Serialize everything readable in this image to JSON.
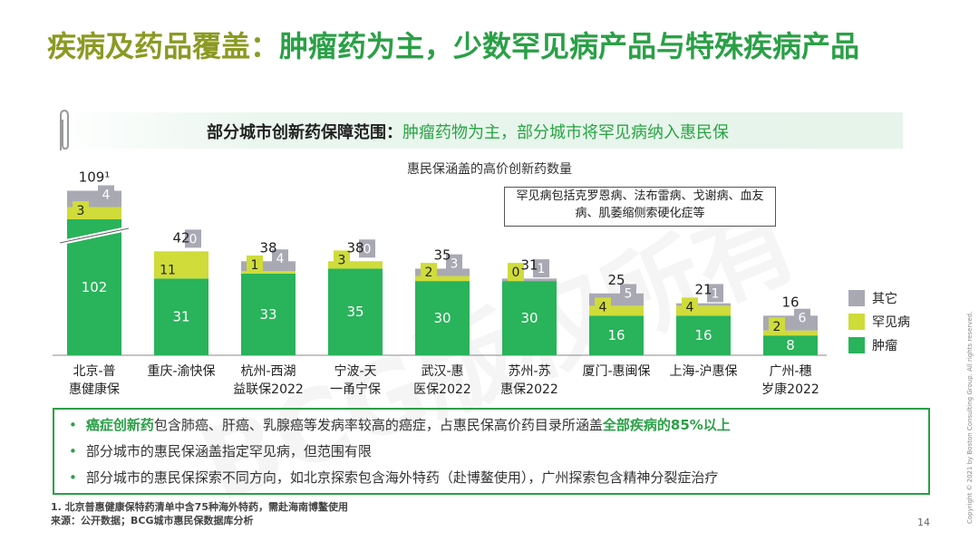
{
  "title_lead": "疾病及药品覆盖：",
  "title_rest": "肿瘤药为主，少数罕见病产品与特殊疾病产品",
  "subhead_bold": "部分城市创新药保障范围：",
  "subhead_rest": "肿瘤药物为主，部分城市将罕见病纳入惠民保",
  "callout": "罕见病包括克罗恩病、法布雷病、戈谢病、血友病、肌萎缩侧索硬化症等",
  "bullets": {
    "b1_hl1": "癌症创新药",
    "b1_mid": "包含肺癌、肝癌、乳腺癌等发病率较高的癌症，占惠民保高价药目录所涵盖",
    "b1_hl2": "全部疾病的85%以上",
    "b2": "部分城市的惠民保涵盖指定罕见病，但范围有限",
    "b3": "部分城市的惠民保探索不同方向，如北京探索包含海外特药（赴博鳌使用），广州探索包含精神分裂症治疗"
  },
  "footnote1": "1. 北京普惠健康保特药清单中含75种海外特药，需赴海南博鳌使用",
  "footnote2": "来源：公开数据；BCG城市惠民保数据库分析",
  "page_number": "14",
  "copyright": "Copyright © 2021 by Boston Consulting Group. All rights reserved.",
  "colors": {
    "tumor": "#29b35a",
    "rare": "#cfdc3a",
    "other": "#a9a9b4",
    "title_green": "#2aa046",
    "title_olive": "#8a9a22"
  },
  "chart_data": {
    "type": "bar",
    "stacked": true,
    "title": "惠民保涵盖的高价创新药数量",
    "categories": [
      "北京-普\n惠健康保",
      "重庆-渝快保",
      "杭州-西湖\n益联保2022",
      "宁波-天\n一甬宁保",
      "武汉-惠\n医保2022",
      "苏州-苏\n惠保2022",
      "厦门-惠闽保",
      "上海-沪惠保",
      "广州-穗\n岁康2022"
    ],
    "series": [
      {
        "name": "肿瘤",
        "values": [
          102,
          31,
          33,
          35,
          30,
          30,
          16,
          16,
          8
        ]
      },
      {
        "name": "罕见病",
        "values": [
          3,
          11,
          1,
          3,
          2,
          0,
          4,
          4,
          2
        ]
      },
      {
        "name": "其它",
        "values": [
          4,
          0,
          4,
          0,
          3,
          1,
          5,
          1,
          6
        ]
      }
    ],
    "totals": [
      "109¹",
      "42",
      "38",
      "38",
      "35",
      "31",
      "25",
      "21",
      "16"
    ],
    "axis_break": "北京-普惠健康保"
  }
}
